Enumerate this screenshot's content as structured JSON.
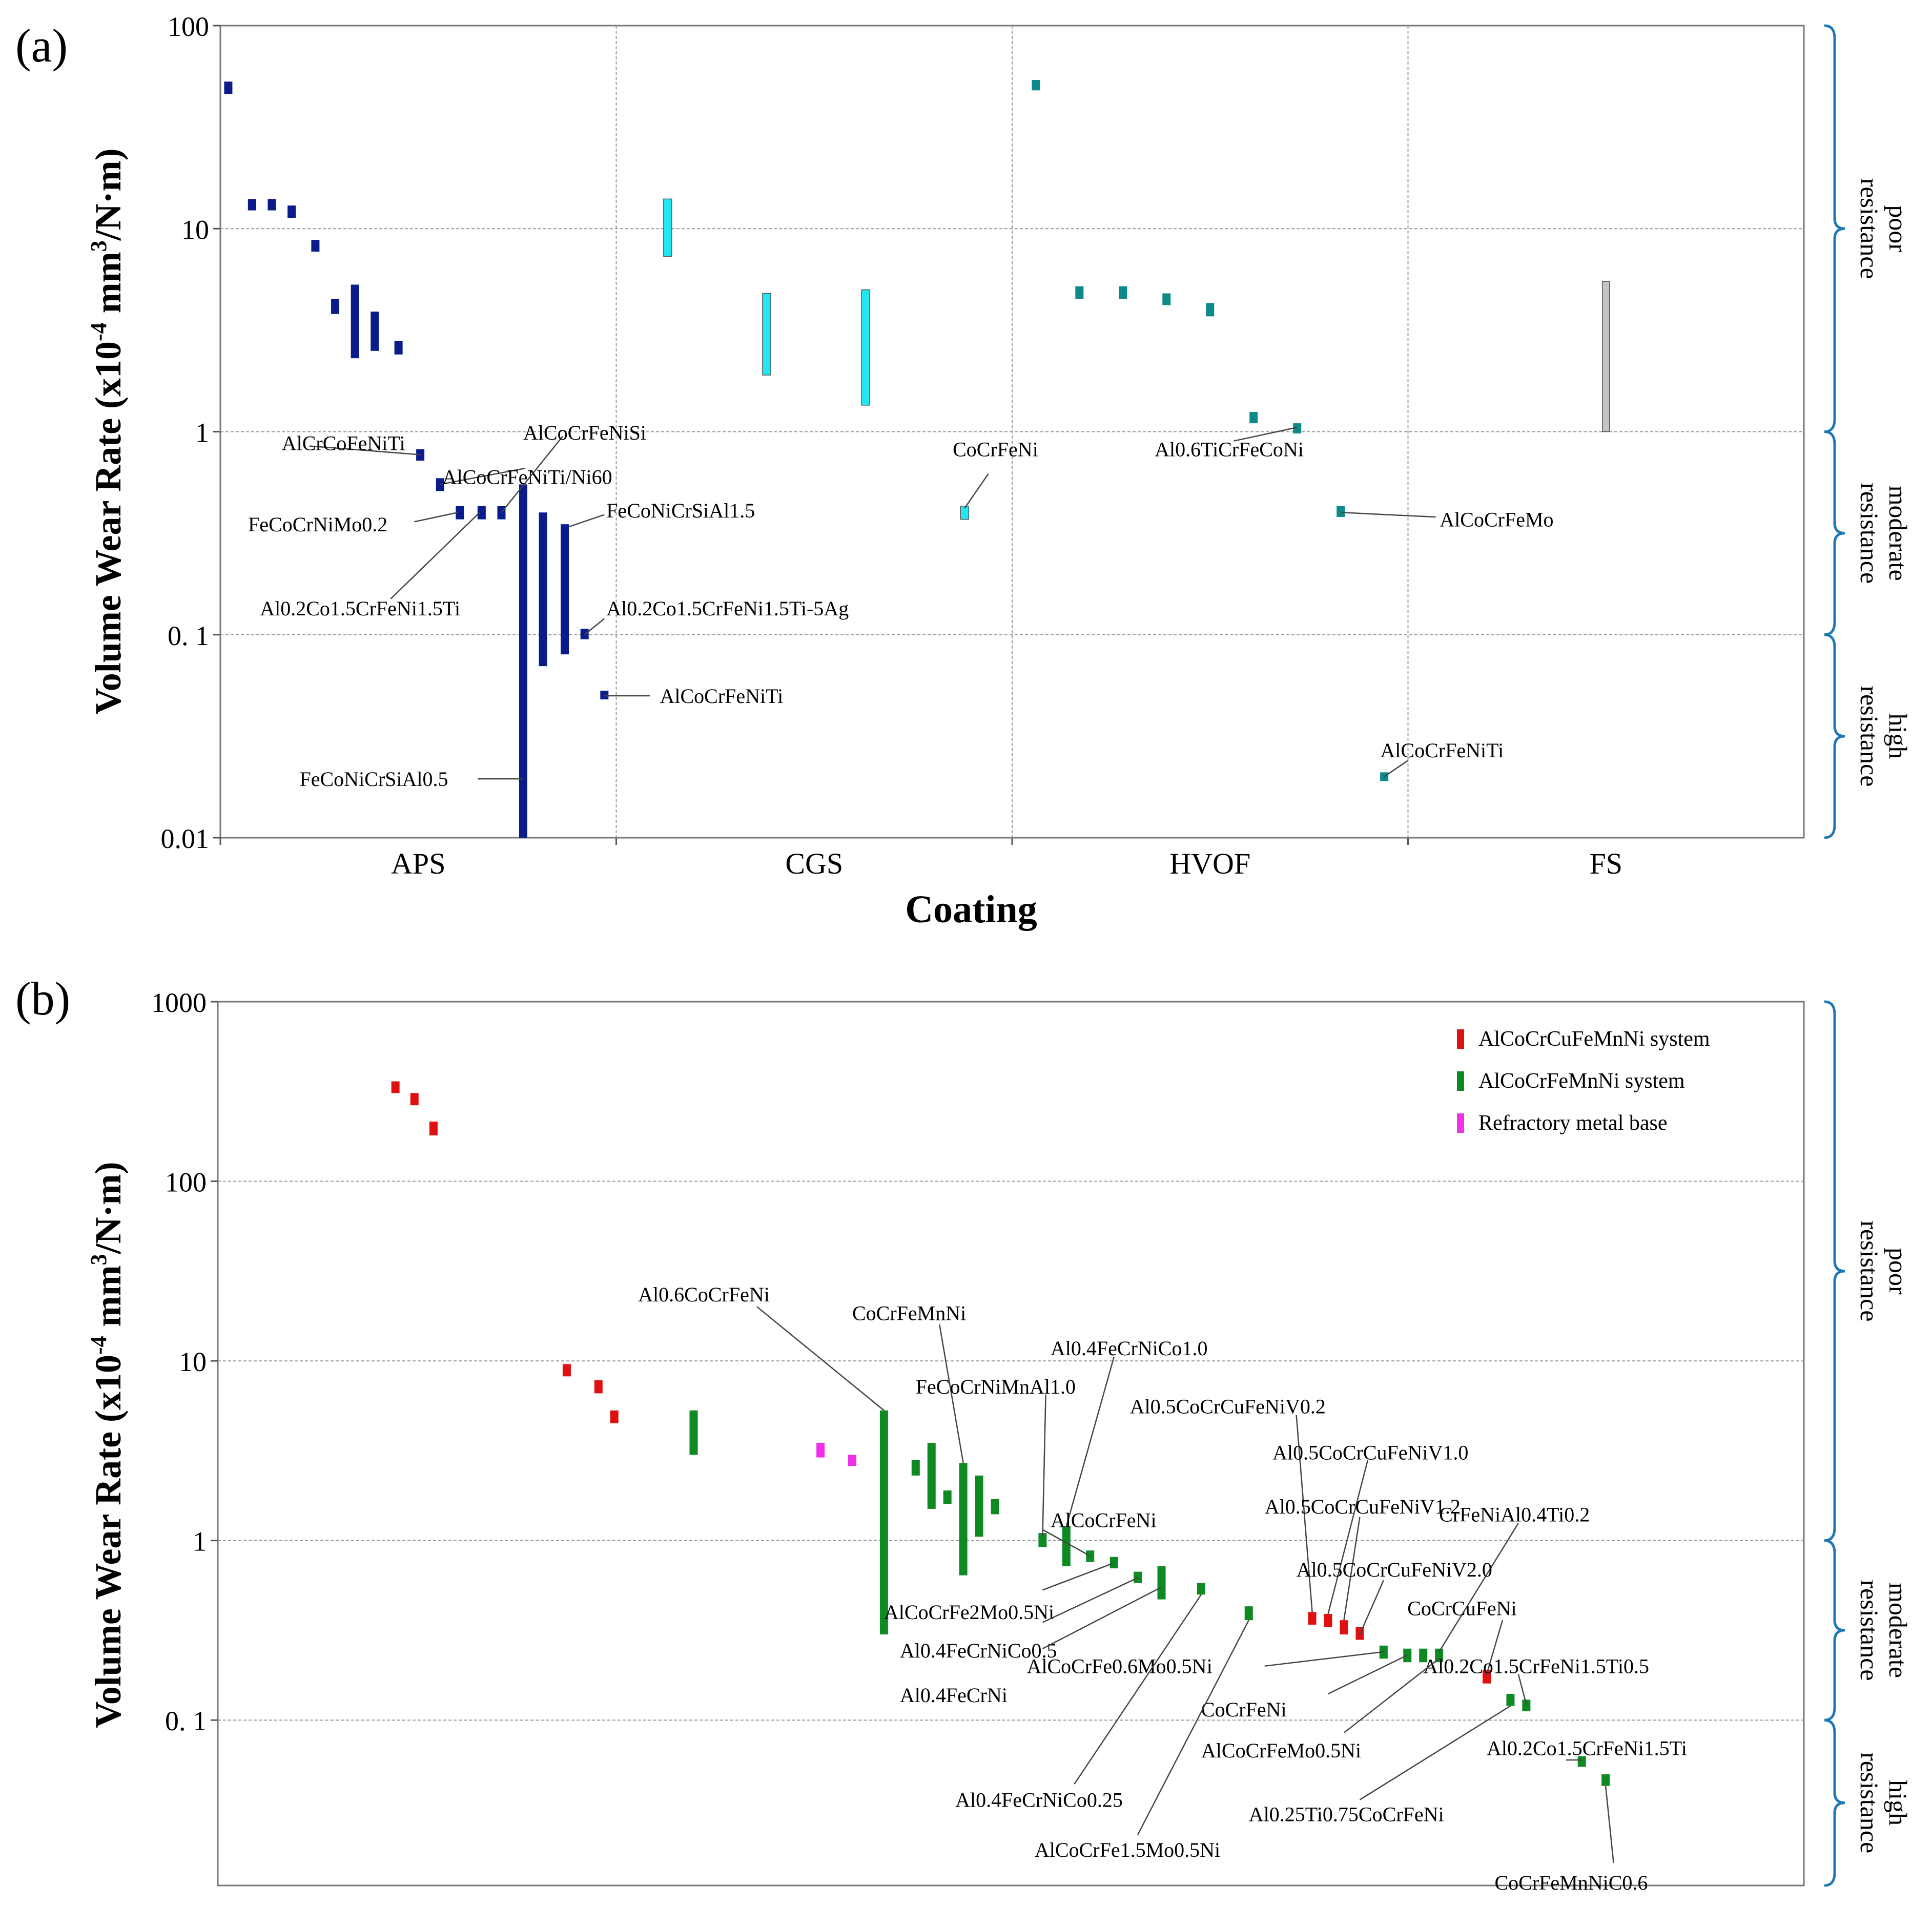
{
  "chart_data": [
    {
      "panel_label": "(a)",
      "type": "range-bar",
      "scale": "log",
      "xlabel": "Coating",
      "ylabel_parts": {
        "main": "Volume Wear Rate (x10",
        "exp1": "-4",
        "mid": " mm",
        "exp2": "3",
        "end": "/N·m)"
      },
      "ylim": [
        0.01,
        100
      ],
      "yticks": [
        {
          "value": 100,
          "label": "100"
        },
        {
          "value": 10,
          "label": "10"
        },
        {
          "value": 1,
          "label": "1"
        },
        {
          "value": 0.1,
          "label": "0. 1"
        },
        {
          "value": 0.01,
          "label": "0.01"
        }
      ],
      "categories": [
        "APS",
        "CGS",
        "HVOF",
        "FS"
      ],
      "category_colors": {
        "APS": "#0a1c8c",
        "CGS": "#22e6f2",
        "HVOF": "#0f8a8a",
        "FS": "#c4c4c4"
      },
      "bars": [
        {
          "cat": "APS",
          "x": 0.02,
          "lo": 46,
          "hi": 53
        },
        {
          "cat": "APS",
          "x": 0.08,
          "lo": 12.3,
          "hi": 14
        },
        {
          "cat": "APS",
          "x": 0.13,
          "lo": 12.3,
          "hi": 14
        },
        {
          "cat": "APS",
          "x": 0.18,
          "lo": 11.3,
          "hi": 13
        },
        {
          "cat": "APS",
          "x": 0.24,
          "lo": 7.7,
          "hi": 8.8
        },
        {
          "cat": "APS",
          "x": 0.29,
          "lo": 3.8,
          "hi": 4.5
        },
        {
          "cat": "APS",
          "x": 0.34,
          "lo": 2.3,
          "hi": 5.3
        },
        {
          "cat": "APS",
          "x": 0.39,
          "lo": 2.5,
          "hi": 3.9
        },
        {
          "cat": "APS",
          "x": 0.45,
          "lo": 2.4,
          "hi": 2.8
        },
        {
          "cat": "APS",
          "x": 0.505,
          "lo": 0.72,
          "hi": 0.82
        },
        {
          "cat": "APS",
          "x": 0.555,
          "lo": 0.51,
          "hi": 0.59
        },
        {
          "cat": "APS",
          "x": 0.605,
          "lo": 0.37,
          "hi": 0.43
        },
        {
          "cat": "APS",
          "x": 0.66,
          "lo": 0.37,
          "hi": 0.43
        },
        {
          "cat": "APS",
          "x": 0.71,
          "lo": 0.37,
          "hi": 0.43
        },
        {
          "cat": "APS",
          "x": 0.765,
          "lo": 0.01,
          "hi": 0.55
        },
        {
          "cat": "APS",
          "x": 0.815,
          "lo": 0.07,
          "hi": 0.4
        },
        {
          "cat": "APS",
          "x": 0.87,
          "lo": 0.08,
          "hi": 0.35
        },
        {
          "cat": "APS",
          "x": 0.92,
          "lo": 0.095,
          "hi": 0.107
        },
        {
          "cat": "APS",
          "x": 0.97,
          "lo": 0.048,
          "hi": 0.053
        },
        {
          "cat": "CGS",
          "x": 0.13,
          "lo": 7.3,
          "hi": 14
        },
        {
          "cat": "CGS",
          "x": 0.38,
          "lo": 1.9,
          "hi": 4.8
        },
        {
          "cat": "CGS",
          "x": 0.63,
          "lo": 1.35,
          "hi": 5
        },
        {
          "cat": "CGS",
          "x": 0.88,
          "lo": 0.37,
          "hi": 0.43
        },
        {
          "cat": "HVOF",
          "x": 0.06,
          "lo": 48,
          "hi": 54
        },
        {
          "cat": "HVOF",
          "x": 0.17,
          "lo": 4.5,
          "hi": 5.2
        },
        {
          "cat": "HVOF",
          "x": 0.28,
          "lo": 4.5,
          "hi": 5.2
        },
        {
          "cat": "HVOF",
          "x": 0.39,
          "lo": 4.2,
          "hi": 4.8
        },
        {
          "cat": "HVOF",
          "x": 0.5,
          "lo": 3.7,
          "hi": 4.3
        },
        {
          "cat": "HVOF",
          "x": 0.61,
          "lo": 1.1,
          "hi": 1.25
        },
        {
          "cat": "HVOF",
          "x": 0.72,
          "lo": 0.98,
          "hi": 1.1
        },
        {
          "cat": "HVOF",
          "x": 0.83,
          "lo": 0.38,
          "hi": 0.43
        },
        {
          "cat": "HVOF",
          "x": 0.94,
          "lo": 0.019,
          "hi": 0.021
        },
        {
          "cat": "FS",
          "x": 0.5,
          "lo": 1.0,
          "hi": 5.5
        }
      ],
      "annotations": [
        {
          "text": "AlCrCoFeNiTi",
          "tx": 0.155,
          "ty": 0.88,
          "anchor": "start",
          "lx1": 0.225,
          "ly1": 0.85,
          "lx2": 0.505,
          "ly2": 0.77
        },
        {
          "text": "AlCoCrFeNiTi/Ni60",
          "tx": 0.775,
          "ty": 0.6,
          "anchor": "middle",
          "lx1": 0.77,
          "ly1": 0.66,
          "lx2": 0.555,
          "ly2": 0.55
        },
        {
          "text": "AlCoCrFeNiSi",
          "tx": 0.765,
          "ty": 0.99,
          "anchor": "start",
          "lx1": 0.865,
          "ly1": 0.95,
          "lx2": 0.71,
          "ly2": 0.4
        },
        {
          "text": "FeCoCrNiMo0.2",
          "tx": 0.07,
          "ty": 0.35,
          "anchor": "start",
          "lx1": 0.49,
          "ly1": 0.36,
          "lx2": 0.6,
          "ly2": 0.4
        },
        {
          "text": "FeCoNiCrSiAl1.5",
          "tx": 0.975,
          "ty": 0.41,
          "anchor": "start",
          "lx1": 0.97,
          "ly1": 0.39,
          "lx2": 0.88,
          "ly2": 0.34
        },
        {
          "text": "Al0.2Co1.5CrFeNi1.5Ti",
          "tx": 0.1,
          "ty": 0.135,
          "anchor": "start",
          "lx1": 0.43,
          "ly1": 0.15,
          "lx2": 0.655,
          "ly2": 0.4
        },
        {
          "text": "Al0.2Co1.5CrFeNi1.5Ti-5Ag",
          "tx": 0.975,
          "ty": 0.135,
          "anchor": "start",
          "lx1": 0.97,
          "ly1": 0.12,
          "lx2": 0.92,
          "ly2": 0.1
        },
        {
          "text": "AlCoCrFeNiTi",
          "tx": 1.11,
          "ty": 0.05,
          "anchor": "start",
          "lx1": 1.085,
          "ly1": 0.05,
          "lx2": 0.97,
          "ly2": 0.05
        },
        {
          "text": "FeCoNiCrSiAl0.5",
          "tx": 0.2,
          "ty": 0.0195,
          "anchor": "start",
          "lx1": 0.65,
          "ly1": 0.0195,
          "lx2": 0.765,
          "ly2": 0.0195
        },
        {
          "text": "CoCrFeNi",
          "tx": 1.85,
          "ty": 0.82,
          "anchor": "start",
          "lx1": 1.94,
          "ly1": 0.62,
          "lx2": 1.88,
          "ly2": 0.42
        },
        {
          "text": "Al0.6TiCrFeCoNi",
          "tx": 2.36,
          "ty": 0.82,
          "anchor": "start",
          "lx1": 2.56,
          "ly1": 0.9,
          "lx2": 2.72,
          "ly2": 1.05
        },
        {
          "text": "AlCoCrFeMo",
          "tx": 3.08,
          "ty": 0.37,
          "anchor": "start",
          "lx1": 3.07,
          "ly1": 0.38,
          "lx2": 2.83,
          "ly2": 0.4
        },
        {
          "text": "AlCoCrFeNiTi",
          "tx": 2.93,
          "ty": 0.027,
          "anchor": "start",
          "lx1": 3.0,
          "ly1": 0.024,
          "lx2": 2.94,
          "ly2": 0.02
        }
      ],
      "bracket_labels": [
        {
          "lines": [
            "poor",
            "resistance"
          ],
          "range": [
            1,
            100
          ]
        },
        {
          "lines": [
            "moderate",
            "resistance"
          ],
          "range": [
            0.1,
            1
          ]
        },
        {
          "lines": [
            "high",
            "resistance"
          ],
          "range": [
            0.01,
            0.1
          ]
        }
      ]
    },
    {
      "panel_label": "(b)",
      "type": "range-bar",
      "scale": "log",
      "xlabel": "",
      "ylabel_parts": {
        "main": "Volume Wear Rate (x10",
        "exp1": "-4",
        "mid": " mm",
        "exp2": "3",
        "end": "/N·m)"
      },
      "ylim": [
        0.012,
        1000
      ],
      "yticks": [
        {
          "value": 1000,
          "label": "1000"
        },
        {
          "value": 100,
          "label": "100"
        },
        {
          "value": 10,
          "label": "10"
        },
        {
          "value": 1,
          "label": "1"
        },
        {
          "value": 0.1,
          "label": "0. 1"
        }
      ],
      "legend": [
        {
          "label": "AlCoCrCuFeMnNi system",
          "color": "#e01010"
        },
        {
          "label": "AlCoCrFeMnNi system",
          "color": "#0f8a22"
        },
        {
          "label": "Refractory metal base",
          "color": "#f030e8"
        }
      ],
      "bars": [
        {
          "series": 0,
          "x": 0.112,
          "lo": 310,
          "hi": 360
        },
        {
          "series": 0,
          "x": 0.124,
          "lo": 265,
          "hi": 310
        },
        {
          "series": 0,
          "x": 0.136,
          "lo": 180,
          "hi": 215
        },
        {
          "series": 0,
          "x": 0.22,
          "lo": 8.2,
          "hi": 9.6
        },
        {
          "series": 0,
          "x": 0.24,
          "lo": 6.6,
          "hi": 7.8
        },
        {
          "series": 0,
          "x": 0.25,
          "lo": 4.5,
          "hi": 5.3
        },
        {
          "series": 1,
          "x": 0.3,
          "lo": 3.0,
          "hi": 5.3
        },
        {
          "series": 2,
          "x": 0.38,
          "lo": 2.9,
          "hi": 3.5
        },
        {
          "series": 2,
          "x": 0.4,
          "lo": 2.6,
          "hi": 3.0
        },
        {
          "series": 1,
          "x": 0.42,
          "lo": 0.3,
          "hi": 5.3
        },
        {
          "series": 1,
          "x": 0.44,
          "lo": 2.3,
          "hi": 2.8
        },
        {
          "series": 1,
          "x": 0.45,
          "lo": 1.5,
          "hi": 3.5
        },
        {
          "series": 1,
          "x": 0.46,
          "lo": 1.6,
          "hi": 1.9
        },
        {
          "series": 1,
          "x": 0.47,
          "lo": 0.64,
          "hi": 2.7
        },
        {
          "series": 1,
          "x": 0.48,
          "lo": 1.05,
          "hi": 2.3
        },
        {
          "series": 1,
          "x": 0.49,
          "lo": 1.4,
          "hi": 1.7
        },
        {
          "series": 1,
          "x": 0.52,
          "lo": 0.92,
          "hi": 1.1
        },
        {
          "series": 1,
          "x": 0.535,
          "lo": 0.72,
          "hi": 1.2
        },
        {
          "series": 1,
          "x": 0.55,
          "lo": 0.76,
          "hi": 0.88
        },
        {
          "series": 1,
          "x": 0.565,
          "lo": 0.7,
          "hi": 0.81
        },
        {
          "series": 1,
          "x": 0.58,
          "lo": 0.58,
          "hi": 0.67
        },
        {
          "series": 1,
          "x": 0.595,
          "lo": 0.47,
          "hi": 0.72
        },
        {
          "series": 1,
          "x": 0.62,
          "lo": 0.5,
          "hi": 0.58
        },
        {
          "series": 1,
          "x": 0.65,
          "lo": 0.36,
          "hi": 0.43
        },
        {
          "series": 0,
          "x": 0.69,
          "lo": 0.34,
          "hi": 0.4
        },
        {
          "series": 0,
          "x": 0.7,
          "lo": 0.33,
          "hi": 0.39
        },
        {
          "series": 0,
          "x": 0.71,
          "lo": 0.3,
          "hi": 0.36
        },
        {
          "series": 0,
          "x": 0.72,
          "lo": 0.28,
          "hi": 0.33
        },
        {
          "series": 1,
          "x": 0.735,
          "lo": 0.22,
          "hi": 0.26
        },
        {
          "series": 1,
          "x": 0.75,
          "lo": 0.21,
          "hi": 0.25
        },
        {
          "series": 1,
          "x": 0.76,
          "lo": 0.21,
          "hi": 0.25
        },
        {
          "series": 1,
          "x": 0.77,
          "lo": 0.21,
          "hi": 0.25
        },
        {
          "series": 0,
          "x": 0.8,
          "lo": 0.16,
          "hi": 0.19
        },
        {
          "series": 1,
          "x": 0.815,
          "lo": 0.12,
          "hi": 0.14
        },
        {
          "series": 1,
          "x": 0.825,
          "lo": 0.112,
          "hi": 0.13
        },
        {
          "series": 1,
          "x": 0.86,
          "lo": 0.055,
          "hi": 0.063
        },
        {
          "series": 1,
          "x": 0.875,
          "lo": 0.043,
          "hi": 0.05
        }
      ],
      "annotations": [
        {
          "text": "Al0.6CoCrFeNi",
          "tx": 0.265,
          "ty": 23.5,
          "anchor": "start",
          "lx1": 0.34,
          "ly1": 20,
          "lx2": 0.42,
          "ly2": 5.3
        },
        {
          "text": "CoCrFeMnNi",
          "tx": 0.4,
          "ty": 18.5,
          "anchor": "start",
          "lx1": 0.455,
          "ly1": 16,
          "lx2": 0.47,
          "ly2": 2.7
        },
        {
          "text": "Al0.4FeCrNiCo1.0",
          "tx": 0.525,
          "ty": 11.8,
          "anchor": "start",
          "lx1": 0.565,
          "ly1": 10.5,
          "lx2": 0.535,
          "ly2": 1.2
        },
        {
          "text": "FeCoCrNiMnAl1.0",
          "tx": 0.44,
          "ty": 7.2,
          "anchor": "start",
          "lx1": 0.522,
          "ly1": 6.5,
          "lx2": 0.52,
          "ly2": 1.05
        },
        {
          "text": "Al0.5CoCrCuFeNiV0.2",
          "tx": 0.575,
          "ty": 5.6,
          "anchor": "start",
          "lx1": 0.68,
          "ly1": 5.0,
          "lx2": 0.69,
          "ly2": 0.4
        },
        {
          "text": "Al0.5CoCrCuFeNiV1.0",
          "tx": 0.665,
          "ty": 3.1,
          "anchor": "start",
          "lx1": 0.725,
          "ly1": 2.8,
          "lx2": 0.7,
          "ly2": 0.39
        },
        {
          "text": "Al0.5CoCrCuFeNiV1.2",
          "tx": 0.66,
          "ty": 1.55,
          "anchor": "start",
          "lx1": 0.72,
          "ly1": 1.35,
          "lx2": 0.71,
          "ly2": 0.36
        },
        {
          "text": "AlCoCrFeNi",
          "tx": 0.525,
          "ty": 1.3,
          "anchor": "start",
          "lx1": 0.52,
          "ly1": 1.15,
          "lx2": 0.55,
          "ly2": 0.82
        },
        {
          "text": "CrFeNiAl0.4Ti0.2",
          "tx": 0.77,
          "ty": 1.4,
          "anchor": "start",
          "lx1": 0.82,
          "ly1": 1.25,
          "lx2": 0.77,
          "ly2": 0.24
        },
        {
          "text": "Al0.5CoCrCuFeNiV2.0",
          "tx": 0.68,
          "ty": 0.69,
          "anchor": "start",
          "lx1": 0.735,
          "ly1": 0.6,
          "lx2": 0.72,
          "ly2": 0.3
        },
        {
          "text": "AlCoCrFe2Mo0.5Ni",
          "tx": 0.42,
          "ty": 0.4,
          "anchor": "start",
          "lx1": 0.52,
          "ly1": 0.53,
          "lx2": 0.565,
          "ly2": 0.75
        },
        {
          "text": "CoCrCuFeNi",
          "tx": 0.75,
          "ty": 0.42,
          "anchor": "start",
          "lx1": 0.81,
          "ly1": 0.36,
          "lx2": 0.8,
          "ly2": 0.18
        },
        {
          "text": "Al0.4FeCrNiCo0.5",
          "tx": 0.43,
          "ty": 0.245,
          "anchor": "start",
          "lx1": 0.52,
          "ly1": 0.35,
          "lx2": 0.58,
          "ly2": 0.62
        },
        {
          "text": "Al0.2Co1.5CrFeNi1.5Ti0.5",
          "tx": 0.76,
          "ty": 0.2,
          "anchor": "start",
          "lx1": 0.82,
          "ly1": 0.18,
          "lx2": 0.825,
          "ly2": 0.122
        },
        {
          "text": "Al0.4FeCrNi",
          "tx": 0.43,
          "ty": 0.138,
          "anchor": "start",
          "lx1": 0.52,
          "ly1": 0.25,
          "lx2": 0.595,
          "ly2": 0.55
        },
        {
          "text": "AlCoCrFe0.6Mo0.5Ni",
          "tx": 0.51,
          "ty": 0.2,
          "anchor": "start",
          "lx1": 0.66,
          "ly1": 0.2,
          "lx2": 0.735,
          "ly2": 0.24
        },
        {
          "text": "CoCrFeNi",
          "tx": 0.62,
          "ty": 0.115,
          "anchor": "start",
          "lx1": 0.7,
          "ly1": 0.14,
          "lx2": 0.75,
          "ly2": 0.23
        },
        {
          "text": "AlCoCrFeMo0.5Ni",
          "tx": 0.62,
          "ty": 0.068,
          "anchor": "start",
          "lx1": 0.71,
          "ly1": 0.085,
          "lx2": 0.77,
          "ly2": 0.22
        },
        {
          "text": "Al0.2Co1.5CrFeNi1.5Ti",
          "tx": 0.8,
          "ty": 0.07,
          "anchor": "start",
          "lx1": 0.85,
          "ly1": 0.06,
          "lx2": 0.86,
          "ly2": 0.06
        },
        {
          "text": "Al0.4FeCrNiCo0.25",
          "tx": 0.465,
          "ty": 0.036,
          "anchor": "start",
          "lx1": 0.54,
          "ly1": 0.044,
          "lx2": 0.62,
          "ly2": 0.5
        },
        {
          "text": "Al0.25Ti0.75CoCrFeNi",
          "tx": 0.65,
          "ty": 0.03,
          "anchor": "start",
          "lx1": 0.72,
          "ly1": 0.036,
          "lx2": 0.815,
          "ly2": 0.12
        },
        {
          "text": "AlCoCrFe1.5Mo0.5Ni",
          "tx": 0.515,
          "ty": 0.019,
          "anchor": "start",
          "lx1": 0.58,
          "ly1": 0.023,
          "lx2": 0.65,
          "ly2": 0.36
        },
        {
          "text": "CoCrFeMnNiC0.6",
          "tx": 0.805,
          "ty": 0.0125,
          "anchor": "start",
          "lx1": 0.88,
          "ly1": 0.016,
          "lx2": 0.875,
          "ly2": 0.043
        }
      ],
      "bracket_labels": [
        {
          "lines": [
            "poor",
            "resistance"
          ],
          "range": [
            1,
            1000
          ]
        },
        {
          "lines": [
            "moderate",
            "resistance"
          ],
          "range": [
            0.1,
            1
          ]
        },
        {
          "lines": [
            "high",
            "resistance"
          ],
          "range": [
            0.012,
            0.1
          ]
        }
      ]
    }
  ]
}
